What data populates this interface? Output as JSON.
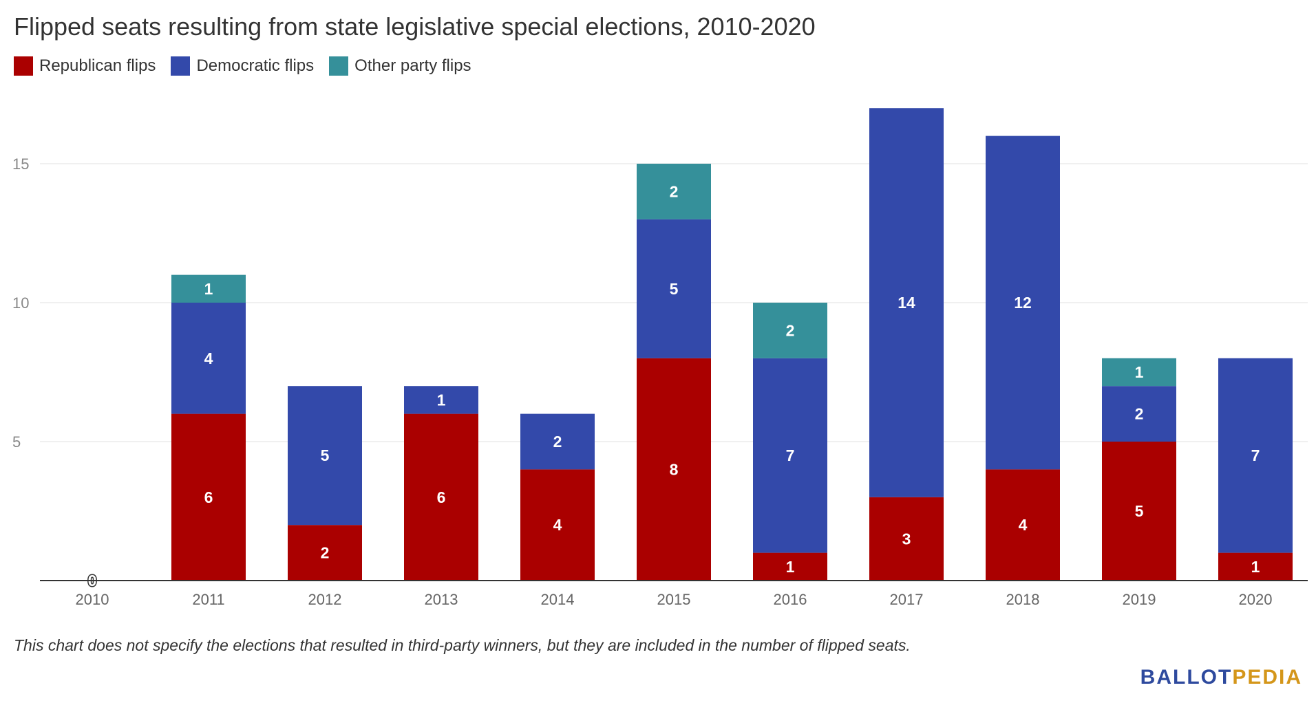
{
  "chart_data": {
    "type": "bar",
    "stacked": true,
    "title": "Flipped seats resulting from state legislative special elections, 2010-2020",
    "categories": [
      "2010",
      "2011",
      "2012",
      "2013",
      "2014",
      "2015",
      "2016",
      "2017",
      "2018",
      "2019",
      "2020"
    ],
    "series": [
      {
        "name": "Republican flips",
        "color": "#aa0000",
        "values": [
          0,
          6,
          2,
          6,
          4,
          8,
          1,
          3,
          4,
          5,
          1
        ]
      },
      {
        "name": "Democratic flips",
        "color": "#3349aa",
        "values": [
          0,
          4,
          5,
          1,
          2,
          5,
          7,
          14,
          12,
          2,
          7
        ]
      },
      {
        "name": "Other party flips",
        "color": "#35909a",
        "values": [
          0,
          1,
          0,
          0,
          0,
          2,
          2,
          0,
          0,
          1,
          0
        ]
      }
    ],
    "yticks": [
      5,
      10,
      15
    ],
    "ylim": [
      0,
      18
    ],
    "grid": true,
    "legend_position": "top-left",
    "xlabel": "",
    "ylabel": ""
  },
  "footnote": "This chart does not specify the elections that resulted in third-party winners, but they are included in the number of flipped seats.",
  "logo": {
    "part1": "BALLOT",
    "part2": "PEDIA"
  }
}
